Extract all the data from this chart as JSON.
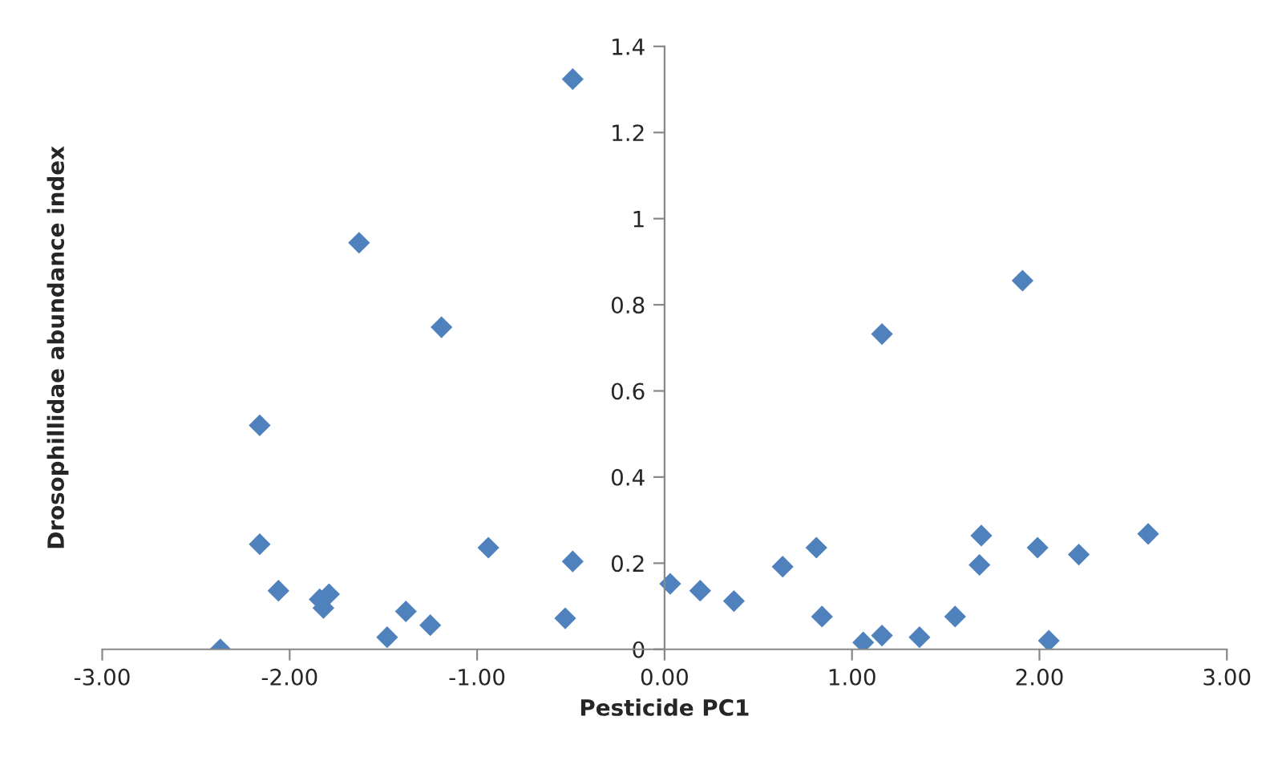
{
  "chart_data": {
    "type": "scatter",
    "xlabel": "Pesticide PC1",
    "ylabel": "Drosophillidae abundance index",
    "marker": "diamond",
    "grid": false,
    "legend": false,
    "x": [
      -2.37,
      -2.16,
      -2.16,
      -2.06,
      -1.84,
      -1.82,
      -1.79,
      -1.63,
      -1.48,
      -1.38,
      -1.25,
      -1.19,
      -0.94,
      -0.53,
      -0.49,
      -0.49,
      0.03,
      0.19,
      0.37,
      0.63,
      0.81,
      0.84,
      1.06,
      1.16,
      1.16,
      1.36,
      1.55,
      1.68,
      1.69,
      1.91,
      1.99,
      2.05,
      2.21,
      2.58
    ],
    "series": [
      {
        "color": "#4f81bd",
        "values": [
          0,
          0.52,
          0.244,
          0.136,
          0.116,
          0.096,
          0.128,
          0.944,
          0.028,
          0.088,
          0.056,
          0.748,
          0.236,
          0.072,
          1.324,
          0.204,
          0.152,
          0.136,
          0.112,
          0.192,
          0.236,
          0.076,
          0.016,
          0.032,
          0.732,
          0.028,
          0.076,
          0.196,
          0.264,
          0.856,
          0.236,
          0.02,
          0.22,
          0.268
        ]
      }
    ],
    "xlim": [
      -3,
      3
    ],
    "xticks": [
      {
        "value": -3,
        "label": "-3.00"
      },
      {
        "value": -2,
        "label": "-2.00"
      },
      {
        "value": -1,
        "label": "-1.00"
      },
      {
        "value": 0,
        "label": "0.00"
      },
      {
        "value": 1,
        "label": "1.00"
      },
      {
        "value": 2,
        "label": "2.00"
      },
      {
        "value": 3,
        "label": "3.00"
      }
    ],
    "ylim": [
      0,
      1.4
    ],
    "yticks": [
      0,
      0.2,
      0.4,
      0.6,
      0.8,
      1,
      1.2,
      1.4
    ]
  }
}
